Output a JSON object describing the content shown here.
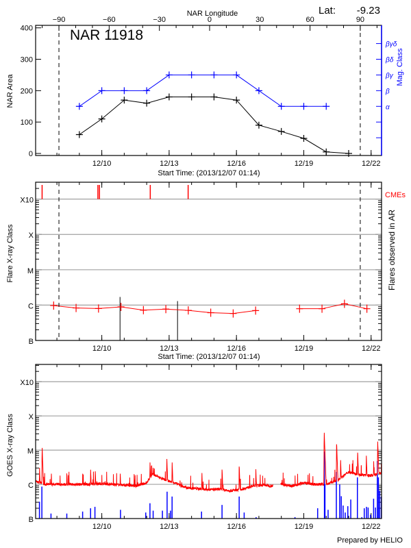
{
  "colors": {
    "area": "#000000",
    "mag": "#0000ff",
    "flare": "#ff0000",
    "cme": "#ff0000",
    "goes_long": "#ff0000",
    "goes_short": "#0000ff",
    "grid": "#a0a0a0"
  },
  "header": {
    "region": "NAR 11918",
    "lat_label": "Lat:",
    "lat_value": "-9.23",
    "credit": "Prepared by HELIO"
  },
  "time_axis": {
    "start": "2013-12-07T01:14",
    "end": "2013-12-22T11:10",
    "ticks": [
      {
        "t": "2013-12-10T00:00",
        "label": "12/10"
      },
      {
        "t": "2013-12-13T00:00",
        "label": "12/13"
      },
      {
        "t": "2013-12-16T00:00",
        "label": "12/16"
      },
      {
        "t": "2013-12-19T00:00",
        "label": "12/19"
      },
      {
        "t": "2013-12-22T00:00",
        "label": "12/22"
      }
    ],
    "title": "Start Time: (2013/12/07 01:14)"
  },
  "chart_data": [
    {
      "type": "line",
      "title": "NAR 11918",
      "ylabel": "NAR Area",
      "ylim": [
        -6.5,
        408
      ],
      "yticks": [
        0,
        100,
        200,
        300,
        400
      ],
      "top_axis": {
        "label": "NAR Longitude",
        "ticks": [
          -90,
          -60,
          -30,
          0,
          30,
          60,
          90
        ],
        "lon_minus90_time": "2013-12-08T02:10",
        "lon_plus90_time": "2013-12-21T12:25"
      },
      "right_axis": {
        "label": "Mag. Class",
        "classes": [
          {
            "value": 50,
            "label": ""
          },
          {
            "value": 100,
            "label": ""
          },
          {
            "value": 150,
            "label": "α"
          },
          {
            "value": 200,
            "label": "β"
          },
          {
            "value": 250,
            "label": "βγ"
          },
          {
            "value": 300,
            "label": "βδ"
          },
          {
            "value": 350,
            "label": "βγδ"
          }
        ]
      },
      "series": [
        {
          "key": "area",
          "x": [
            "2013-12-09T00:00",
            "2013-12-10T00:00",
            "2013-12-11T00:00",
            "2013-12-12T00:00",
            "2013-12-13T00:00",
            "2013-12-14T00:00",
            "2013-12-15T00:00",
            "2013-12-16T00:00",
            "2013-12-17T00:00",
            "2013-12-18T00:00",
            "2013-12-19T00:00",
            "2013-12-20T00:00",
            "2013-12-21T00:00"
          ],
          "values": [
            60,
            110,
            170,
            160,
            180,
            180,
            180,
            170,
            90,
            70,
            48,
            5,
            0
          ]
        },
        {
          "key": "mag",
          "x": [
            "2013-12-09T00:00",
            "2013-12-10T00:00",
            "2013-12-11T00:00",
            "2013-12-12T00:00",
            "2013-12-13T00:00",
            "2013-12-14T00:00",
            "2013-12-15T00:00",
            "2013-12-16T00:00",
            "2013-12-17T00:00",
            "2013-12-18T00:00",
            "2013-12-19T00:00",
            "2013-12-20T00:00"
          ],
          "values": [
            "α",
            "β",
            "β",
            "β",
            "βγ",
            "βγ",
            "βγ",
            "βγ",
            "β",
            "α",
            "α",
            "α"
          ]
        }
      ]
    },
    {
      "type": "line",
      "ylabel": "Flare X-ray Class",
      "right_label": "Flares observed in AR",
      "cme_label": "CMEs",
      "yscale": "log",
      "ylim": [
        1e-07,
        0.003
      ],
      "yticks": [
        {
          "v": 1e-07,
          "label": "B"
        },
        {
          "v": 1e-06,
          "label": "C"
        },
        {
          "v": 1e-05,
          "label": "M"
        },
        {
          "v": 0.0001,
          "label": "X"
        },
        {
          "v": 0.001,
          "label": "X10"
        }
      ],
      "daily_level_segments": [
        {
          "x": [
            "2013-12-07T20:30",
            "2013-12-08T20:30",
            "2013-12-09T20:30",
            "2013-12-10T20:30",
            "2013-12-11T20:30",
            "2013-12-12T20:30",
            "2013-12-13T20:30",
            "2013-12-14T20:30",
            "2013-12-15T20:30",
            "2013-12-16T20:30"
          ],
          "values": [
            9.7e-07,
            8.3e-07,
            8e-07,
            8.9e-07,
            7.2e-07,
            7.7e-07,
            7.1e-07,
            6.1e-07,
            5.8e-07,
            7e-07
          ]
        },
        {
          "x": [
            "2013-12-18T19:30",
            "2013-12-19T19:30",
            "2013-12-20T19:30",
            "2013-12-21T19:30"
          ],
          "values": [
            7.9e-07,
            7.9e-07,
            1.09e-06,
            7.9e-07
          ]
        }
      ],
      "ar_flares": [
        {
          "t": "2013-12-10T19:30",
          "v": 1.7e-06
        },
        {
          "t": "2013-12-13T09:00",
          "v": 1.3e-06
        }
      ],
      "cmes": [
        "2013-12-07T08:10",
        "2013-12-09T19:50",
        "2013-12-09T21:30",
        "2013-12-12T03:50",
        "2013-12-13T20:20"
      ]
    },
    {
      "type": "line",
      "ylabel": "GOES X-ray Class",
      "yscale": "log",
      "ylim": [
        1e-07,
        0.0032
      ],
      "yticks": [
        {
          "v": 1e-07,
          "label": "B"
        },
        {
          "v": 1e-06,
          "label": "C"
        },
        {
          "v": 1e-05,
          "label": "M"
        },
        {
          "v": 0.0001,
          "label": "X"
        },
        {
          "v": 0.001,
          "label": "X10"
        }
      ],
      "data_gap": [
        "2013-12-17T15:00",
        "2013-12-17T23:20"
      ],
      "long_background": [
        [
          "2013-12-07T01:14",
          1.2e-06
        ],
        [
          "2013-12-07T12:00",
          1e-06
        ],
        [
          "2013-12-08T00:00",
          1e-06
        ],
        [
          "2013-12-08T12:00",
          1e-06
        ],
        [
          "2013-12-09T00:00",
          1e-06
        ],
        [
          "2013-12-09T12:00",
          1e-06
        ],
        [
          "2013-12-10T00:00",
          1.05e-06
        ],
        [
          "2013-12-10T12:00",
          1e-06
        ],
        [
          "2013-12-11T00:00",
          9.5e-07
        ],
        [
          "2013-12-11T12:00",
          9e-07
        ],
        [
          "2013-12-12T00:00",
          1.1e-06
        ],
        [
          "2013-12-12T06:00",
          2e-06
        ],
        [
          "2013-12-12T18:00",
          1.4e-06
        ],
        [
          "2013-12-13T06:00",
          1.1e-06
        ],
        [
          "2013-12-13T18:00",
          8e-07
        ],
        [
          "2013-12-14T06:00",
          7.5e-07
        ],
        [
          "2013-12-14T18:00",
          7e-07
        ],
        [
          "2013-12-15T06:00",
          7.2e-07
        ],
        [
          "2013-12-15T18:00",
          6.5e-07
        ],
        [
          "2013-12-16T06:00",
          7.2e-07
        ],
        [
          "2013-12-16T18:00",
          9e-07
        ],
        [
          "2013-12-17T06:00",
          9.5e-07
        ],
        [
          "2013-12-17T12:00",
          9e-07
        ],
        [
          "2013-12-18T00:00",
          1e-06
        ],
        [
          "2013-12-18T12:00",
          9e-07
        ],
        [
          "2013-12-19T00:00",
          1.1e-06
        ],
        [
          "2013-12-19T12:00",
          1e-06
        ],
        [
          "2013-12-20T00:00",
          1e-06
        ],
        [
          "2013-12-20T12:00",
          1.3e-06
        ],
        [
          "2013-12-21T00:00",
          2.3e-06
        ],
        [
          "2013-12-21T12:00",
          1.9e-06
        ],
        [
          "2013-12-22T00:00",
          1.8e-06
        ],
        [
          "2013-12-22T11:10",
          2.2e-06
        ]
      ],
      "long_peaks": [
        [
          "2013-12-07T05:20",
          3.4e-06
        ],
        [
          "2013-12-07T08:10",
          1.3e-05
        ],
        [
          "2013-12-07T18:00",
          2.3e-06
        ],
        [
          "2013-12-08T10:35",
          2.4e-06
        ],
        [
          "2013-12-09T03:30",
          2.3e-06
        ],
        [
          "2013-12-09T12:00",
          3e-06
        ],
        [
          "2013-12-09T17:00",
          2.7e-06
        ],
        [
          "2013-12-10T19:40",
          2.3e-06
        ],
        [
          "2013-12-12T03:30",
          4.9e-06
        ],
        [
          "2013-12-12T06:55",
          3.5e-06
        ],
        [
          "2013-12-12T21:30",
          6.2e-06
        ],
        [
          "2013-12-13T03:10",
          4.9e-06
        ],
        [
          "2013-12-14T11:00",
          2.4e-06
        ],
        [
          "2013-12-15T08:35",
          3.1e-06
        ],
        [
          "2013-12-16T02:55",
          3.8e-06
        ],
        [
          "2013-12-16T20:40",
          3.1e-06
        ],
        [
          "2013-12-19T21:50",
          3.6e-05
        ],
        [
          "2013-12-20T11:05",
          1.7e-05
        ],
        [
          "2013-12-20T15:20",
          5.7e-06
        ],
        [
          "2013-12-21T09:35",
          9.7e-06
        ],
        [
          "2013-12-21T18:50",
          7.7e-06
        ],
        [
          "2013-12-22T02:40",
          5.3e-06
        ],
        [
          "2013-12-22T07:00",
          2e-05
        ],
        [
          "2013-12-22T10:55",
          4.6e-06
        ]
      ],
      "short_peaks": [
        [
          "2013-12-07T05:20",
          3.1e-07
        ],
        [
          "2013-12-07T07:55",
          8.6e-07
        ],
        [
          "2013-12-07T17:40",
          1.4e-07
        ],
        [
          "2013-12-08T10:35",
          1.4e-07
        ],
        [
          "2013-12-09T03:30",
          1.6e-07
        ],
        [
          "2013-12-09T12:00",
          2e-07
        ],
        [
          "2013-12-09T16:40",
          2.2e-07
        ],
        [
          "2013-12-10T20:00",
          1.8e-07
        ],
        [
          "2013-12-11T23:00",
          1.5e-07
        ],
        [
          "2013-12-12T03:30",
          2.8e-07
        ],
        [
          "2013-12-12T06:55",
          1.7e-07
        ],
        [
          "2013-12-12T16:50",
          1.7e-07
        ],
        [
          "2013-12-12T21:50",
          6.1e-07
        ],
        [
          "2013-12-13T01:30",
          1.7e-07
        ],
        [
          "2013-12-13T03:10",
          4.4e-07
        ],
        [
          "2013-12-14T10:40",
          1.6e-07
        ],
        [
          "2013-12-15T08:35",
          2.5e-07
        ],
        [
          "2013-12-16T02:55",
          4.4e-07
        ],
        [
          "2013-12-16T08:15",
          1.5e-07
        ],
        [
          "2013-12-16T21:00",
          1.1e-07
        ],
        [
          "2013-12-18T14:35",
          1.1e-07
        ],
        [
          "2013-12-19T14:50",
          2e-07
        ],
        [
          "2013-12-19T22:05",
          9.1e-06
        ],
        [
          "2013-12-19T22:40",
          1e-06
        ],
        [
          "2013-12-20T02:00",
          1.8e-07
        ],
        [
          "2013-12-20T10:50",
          2.3e-06
        ],
        [
          "2013-12-20T14:25",
          1e-06
        ],
        [
          "2013-12-20T16:05",
          4.5e-07
        ],
        [
          "2013-12-20T18:05",
          2.4e-07
        ],
        [
          "2013-12-20T20:20",
          1.5e-07
        ],
        [
          "2013-12-20T23:05",
          2.3e-07
        ],
        [
          "2013-12-21T02:15",
          3.6e-07
        ],
        [
          "2013-12-21T09:20",
          1.6e-06
        ],
        [
          "2013-12-21T14:05",
          1.1e-07
        ],
        [
          "2013-12-21T16:40",
          2e-07
        ],
        [
          "2013-12-21T19:05",
          2.2e-07
        ],
        [
          "2013-12-21T20:50",
          2.1e-07
        ],
        [
          "2013-12-21T23:25",
          1.3e-07
        ],
        [
          "2013-12-22T02:40",
          3.8e-07
        ],
        [
          "2013-12-22T04:40",
          2.1e-07
        ],
        [
          "2013-12-22T06:40",
          4.8e-06
        ],
        [
          "2013-12-22T07:50",
          1.6e-06
        ],
        [
          "2013-12-22T09:10",
          6.5e-07
        ],
        [
          "2013-12-22T10:55",
          4.4e-07
        ]
      ]
    }
  ]
}
